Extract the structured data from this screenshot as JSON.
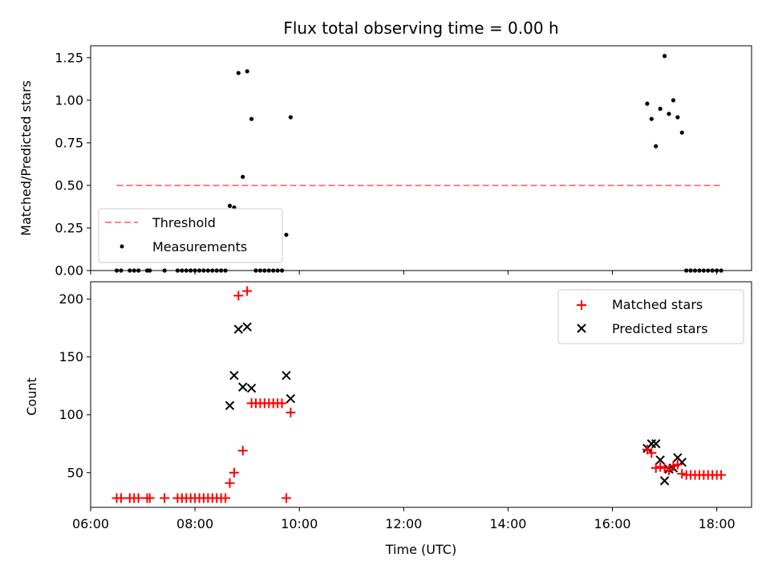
{
  "chart_data": [
    {
      "type": "scatter",
      "title": "Flux total observing time = 0.00 h",
      "xlabel": "",
      "ylabel": "Matched/Predicted stars",
      "xlim": [
        "06:00",
        "18:40"
      ],
      "ylim": [
        0,
        1.32
      ],
      "yticks": [
        "0.00",
        "0.25",
        "0.50",
        "0.75",
        "1.00",
        "1.25"
      ],
      "ytick_values": [
        0,
        0.25,
        0.5,
        0.75,
        1.0,
        1.25
      ],
      "legend": {
        "placement": "lower-left",
        "entries": [
          "Threshold",
          "Measurements"
        ]
      },
      "threshold": {
        "name": "Threshold",
        "color": "#ff7f7f",
        "x_start": "06:30",
        "x_end": "18:05",
        "value": 0.5
      },
      "series": [
        {
          "name": "Measurements",
          "color": "#000000",
          "points": [
            [
              "06:30",
              0
            ],
            [
              "06:35",
              0
            ],
            [
              "06:45",
              0
            ],
            [
              "06:50",
              0
            ],
            [
              "06:55",
              0
            ],
            [
              "07:05",
              0
            ],
            [
              "07:08",
              0
            ],
            [
              "07:25",
              0
            ],
            [
              "07:40",
              0
            ],
            [
              "07:45",
              0
            ],
            [
              "07:50",
              0
            ],
            [
              "07:55",
              0
            ],
            [
              "08:00",
              0
            ],
            [
              "08:05",
              0
            ],
            [
              "08:10",
              0
            ],
            [
              "08:15",
              0
            ],
            [
              "08:20",
              0
            ],
            [
              "08:25",
              0
            ],
            [
              "08:30",
              0
            ],
            [
              "08:35",
              0
            ],
            [
              "08:40",
              0.38
            ],
            [
              "08:45",
              0.37
            ],
            [
              "08:50",
              1.16
            ],
            [
              "08:55",
              0.55
            ],
            [
              "09:00",
              1.17
            ],
            [
              "09:05",
              0.89
            ],
            [
              "09:10",
              0
            ],
            [
              "09:15",
              0
            ],
            [
              "09:20",
              0
            ],
            [
              "09:25",
              0
            ],
            [
              "09:30",
              0
            ],
            [
              "09:35",
              0
            ],
            [
              "09:40",
              0
            ],
            [
              "09:45",
              0.21
            ],
            [
              "09:50",
              0.9
            ],
            [
              "16:40",
              0.98
            ],
            [
              "16:45",
              0.89
            ],
            [
              "16:50",
              0.73
            ],
            [
              "16:55",
              0.95
            ],
            [
              "17:00",
              1.26
            ],
            [
              "17:05",
              0.92
            ],
            [
              "17:10",
              1.0
            ],
            [
              "17:15",
              0.9
            ],
            [
              "17:20",
              0.81
            ],
            [
              "17:25",
              0
            ],
            [
              "17:30",
              0
            ],
            [
              "17:35",
              0
            ],
            [
              "17:40",
              0
            ],
            [
              "17:45",
              0
            ],
            [
              "17:50",
              0
            ],
            [
              "17:55",
              0
            ],
            [
              "18:00",
              0
            ],
            [
              "18:05",
              0
            ]
          ]
        }
      ]
    },
    {
      "type": "scatter",
      "title": "",
      "xlabel": "Time (UTC)",
      "ylabel": "Count",
      "xlim": [
        "06:00",
        "18:40"
      ],
      "xticks": [
        "06:00",
        "08:00",
        "10:00",
        "12:00",
        "14:00",
        "16:00",
        "18:00"
      ],
      "ylim": [
        20,
        215
      ],
      "yticks": [
        "50",
        "100",
        "150",
        "200"
      ],
      "ytick_values": [
        50,
        100,
        150,
        200
      ],
      "legend": {
        "placement": "top-right",
        "entries": [
          "Matched stars",
          "Predicted stars"
        ]
      },
      "series": [
        {
          "name": "Matched stars",
          "marker": "plus",
          "color": "#ff0000",
          "points": [
            [
              "06:30",
              28
            ],
            [
              "06:35",
              28
            ],
            [
              "06:45",
              28
            ],
            [
              "06:50",
              28
            ],
            [
              "06:55",
              28
            ],
            [
              "07:05",
              28
            ],
            [
              "07:08",
              28
            ],
            [
              "07:25",
              28
            ],
            [
              "07:40",
              28
            ],
            [
              "07:45",
              28
            ],
            [
              "07:50",
              28
            ],
            [
              "07:55",
              28
            ],
            [
              "08:00",
              28
            ],
            [
              "08:05",
              28
            ],
            [
              "08:10",
              28
            ],
            [
              "08:15",
              28
            ],
            [
              "08:20",
              28
            ],
            [
              "08:25",
              28
            ],
            [
              "08:30",
              28
            ],
            [
              "08:35",
              28
            ],
            [
              "08:40",
              41
            ],
            [
              "08:45",
              50
            ],
            [
              "08:50",
              203
            ],
            [
              "08:55",
              69
            ],
            [
              "09:00",
              207
            ],
            [
              "09:05",
              110
            ],
            [
              "09:10",
              110
            ],
            [
              "09:15",
              110
            ],
            [
              "09:20",
              110
            ],
            [
              "09:25",
              110
            ],
            [
              "09:30",
              110
            ],
            [
              "09:35",
              110
            ],
            [
              "09:40",
              110
            ],
            [
              "09:45",
              28
            ],
            [
              "09:50",
              102
            ],
            [
              "16:40",
              70
            ],
            [
              "16:45",
              67
            ],
            [
              "16:50",
              54
            ],
            [
              "16:55",
              55
            ],
            [
              "17:00",
              54
            ],
            [
              "17:05",
              52
            ],
            [
              "17:10",
              56
            ],
            [
              "17:15",
              57
            ],
            [
              "17:20",
              49
            ],
            [
              "17:25",
              48
            ],
            [
              "17:30",
              48
            ],
            [
              "17:35",
              48
            ],
            [
              "17:40",
              48
            ],
            [
              "17:45",
              48
            ],
            [
              "17:50",
              48
            ],
            [
              "17:55",
              48
            ],
            [
              "18:00",
              48
            ],
            [
              "18:05",
              48
            ]
          ]
        },
        {
          "name": "Predicted stars",
          "marker": "x",
          "color": "#000000",
          "points": [
            [
              "08:40",
              108
            ],
            [
              "08:45",
              134
            ],
            [
              "08:50",
              174
            ],
            [
              "08:55",
              124
            ],
            [
              "09:00",
              176
            ],
            [
              "09:05",
              123
            ],
            [
              "09:45",
              134
            ],
            [
              "09:50",
              114
            ],
            [
              "16:40",
              71
            ],
            [
              "16:45",
              75
            ],
            [
              "16:50",
              75
            ],
            [
              "16:55",
              61
            ],
            [
              "17:00",
              43
            ],
            [
              "17:05",
              53
            ],
            [
              "17:10",
              54
            ],
            [
              "17:15",
              63
            ],
            [
              "17:20",
              59
            ]
          ]
        }
      ]
    }
  ]
}
